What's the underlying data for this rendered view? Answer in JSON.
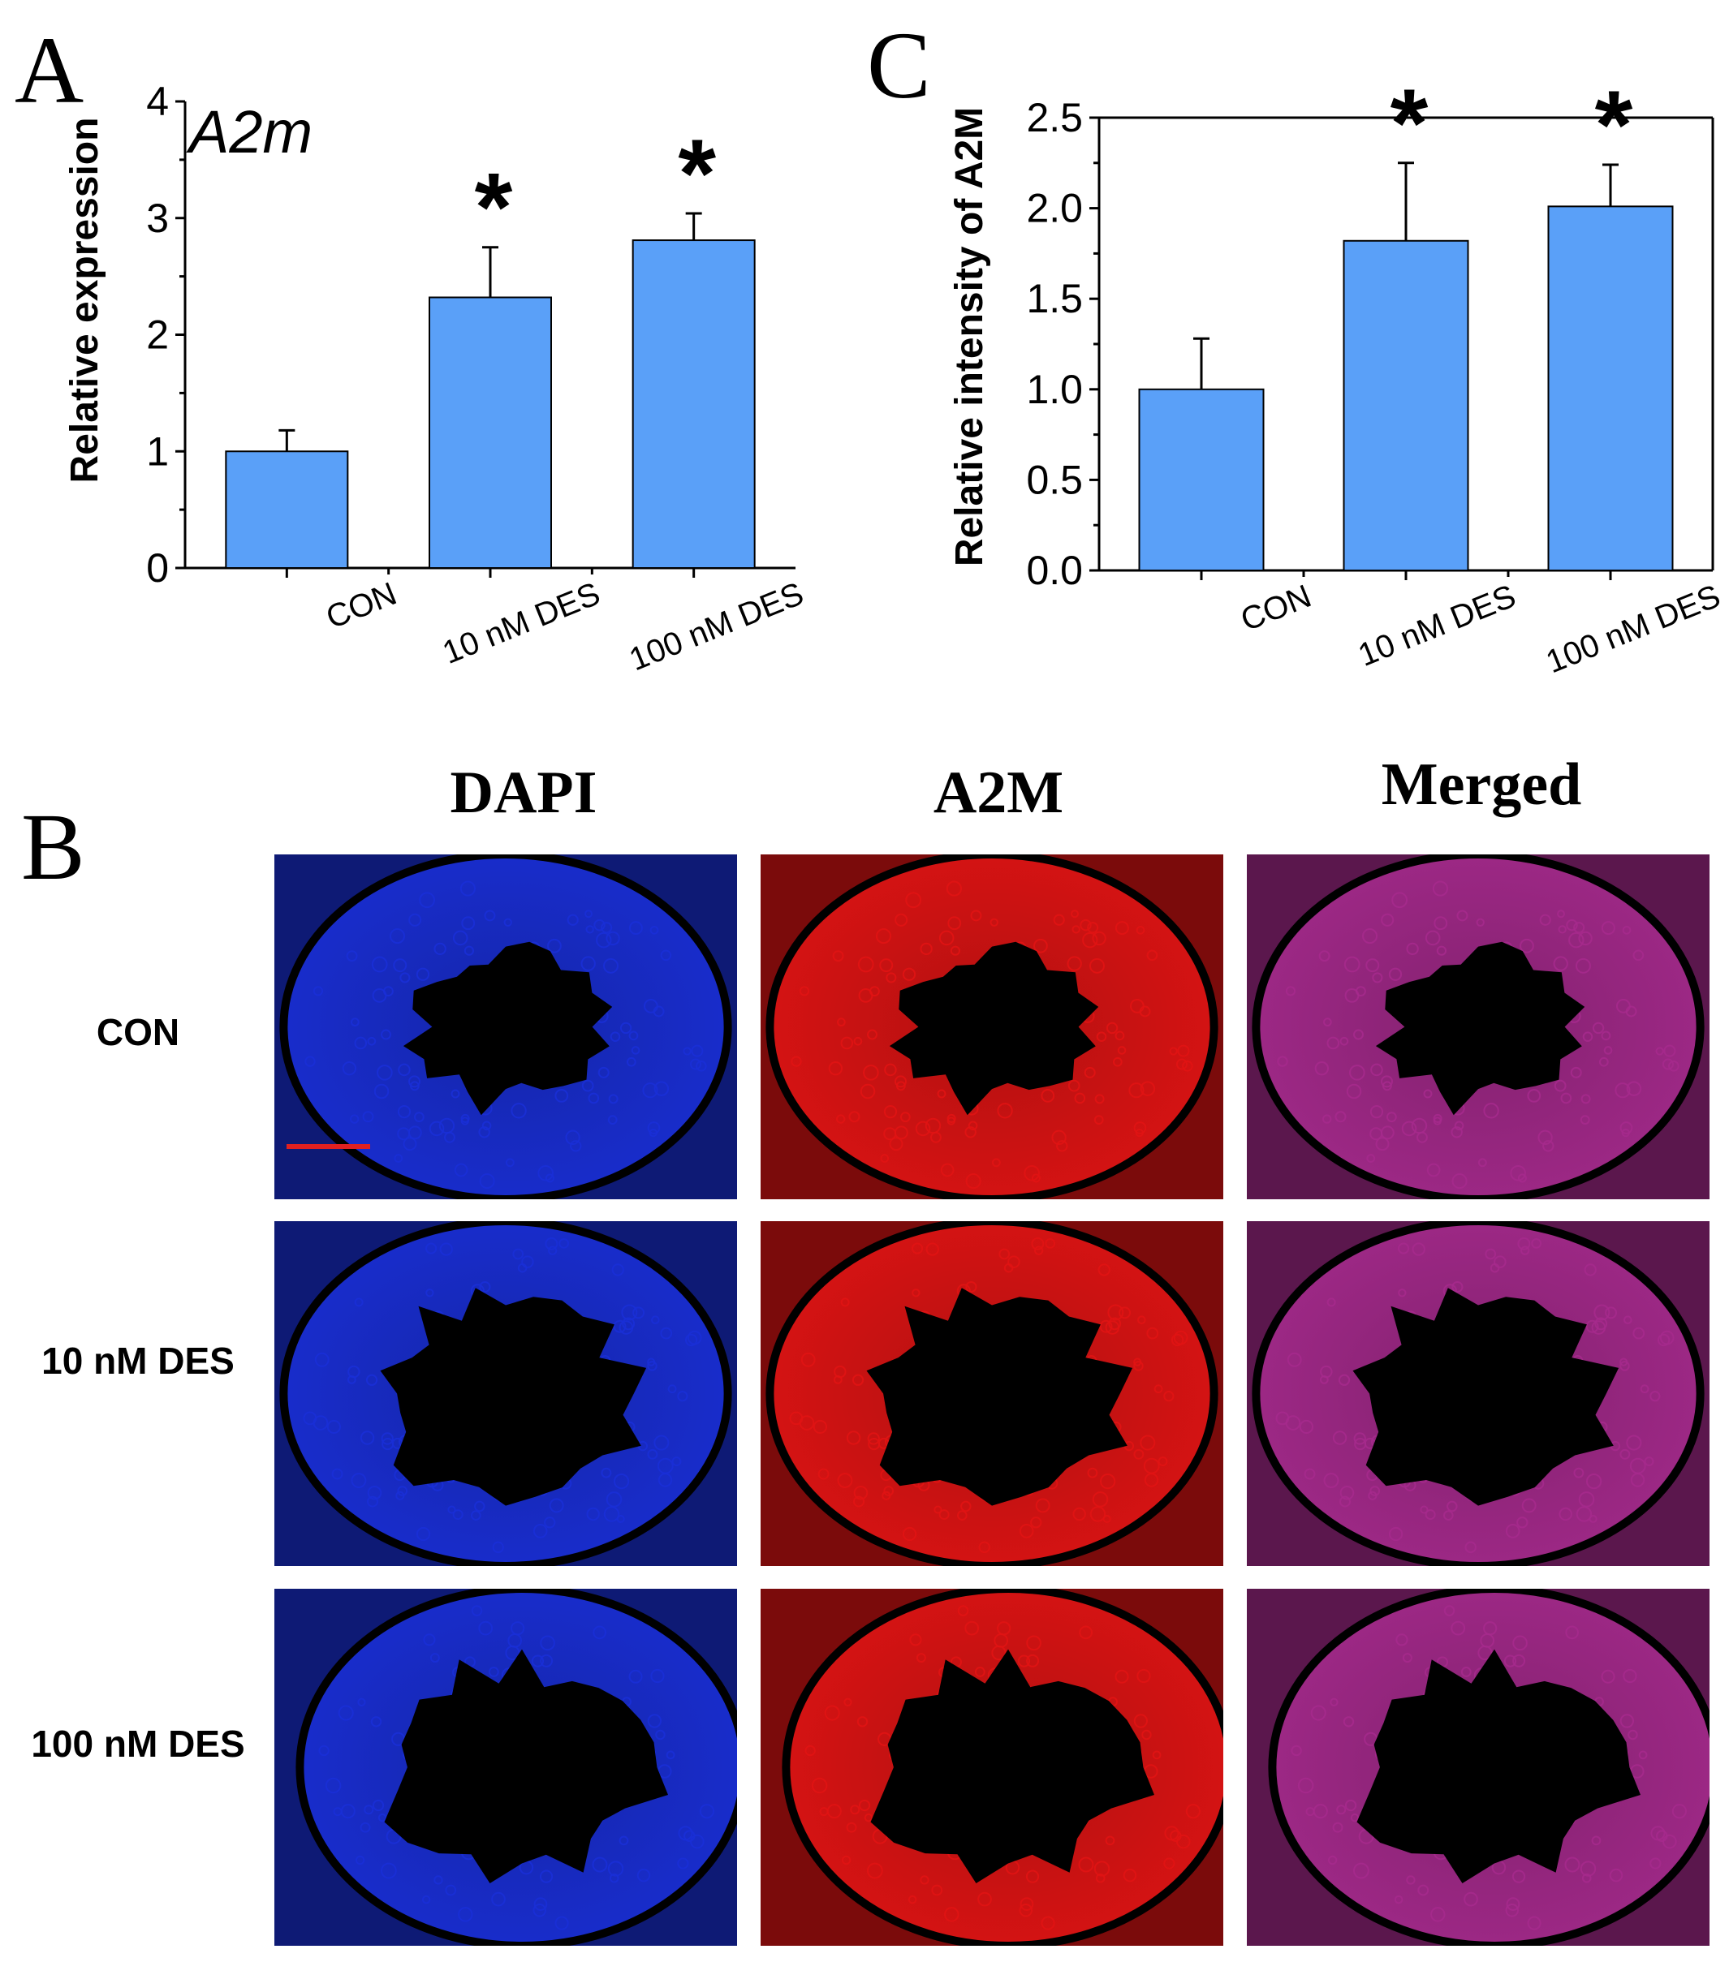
{
  "panels": {
    "A": "A",
    "B": "B",
    "C": "C"
  },
  "chart_data": [
    {
      "panel": "A",
      "type": "bar",
      "title": "A2m",
      "ylabel": "Relative expression",
      "xlabel": "",
      "categories": [
        "CON",
        "10 nM DES",
        "100 nM DES"
      ],
      "values": [
        1.0,
        2.32,
        2.81
      ],
      "errors": [
        0.18,
        0.43,
        0.23
      ],
      "significance": [
        "",
        "*",
        "*"
      ],
      "ylim": [
        0,
        4
      ],
      "yticks": [
        "0",
        "1",
        "2",
        "3",
        "4"
      ],
      "bar_color": "#5aa0f8"
    },
    {
      "panel": "C",
      "type": "bar",
      "title": "",
      "ylabel": "Relative intensity of A2M",
      "xlabel": "",
      "categories": [
        "CON",
        "10 nM DES",
        "100 nM DES"
      ],
      "values": [
        1.0,
        1.82,
        2.01
      ],
      "errors": [
        0.28,
        0.43,
        0.23
      ],
      "significance": [
        "",
        "*",
        "*"
      ],
      "ylim": [
        0,
        2.5
      ],
      "yticks": [
        "0.0",
        "0.5",
        "1.0",
        "1.5",
        "2.0",
        "2.5"
      ],
      "bar_color": "#5aa0f8"
    }
  ],
  "microscopy": {
    "columns": [
      "DAPI",
      "A2M",
      "Merged"
    ],
    "rows": [
      "CON",
      "10 nM DES",
      "100 nM DES"
    ],
    "channel_colors": {
      "DAPI": "#1a2fd6",
      "A2M": "#e01414",
      "Merged": "#a52a8c"
    },
    "scale_bar_color": "#e02020"
  }
}
